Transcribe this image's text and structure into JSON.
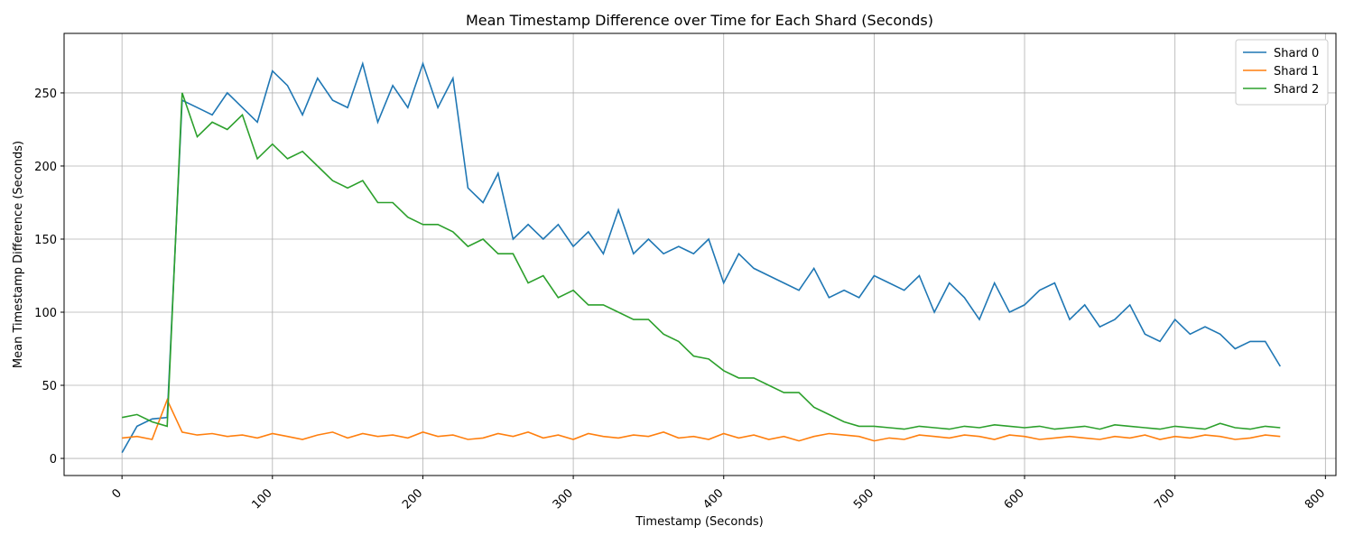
{
  "chart_data": {
    "type": "line",
    "title": "Mean Timestamp Difference over Time for Each Shard (Seconds)",
    "x_label": "Timestamp (Seconds)",
    "y_label": "Mean Timestamp Difference (Seconds)",
    "x": [
      0,
      10,
      20,
      30,
      40,
      50,
      60,
      70,
      80,
      90,
      100,
      110,
      120,
      130,
      140,
      150,
      160,
      170,
      180,
      190,
      200,
      210,
      220,
      230,
      240,
      250,
      260,
      270,
      280,
      290,
      300,
      310,
      320,
      330,
      340,
      350,
      360,
      370,
      380,
      390,
      400,
      410,
      420,
      430,
      440,
      450,
      460,
      470,
      480,
      490,
      500,
      510,
      520,
      530,
      540,
      550,
      560,
      570,
      580,
      590,
      600,
      610,
      620,
      630,
      640,
      650,
      660,
      670,
      680,
      690,
      700,
      710,
      720,
      730,
      740,
      750,
      760,
      770
    ],
    "series": [
      {
        "name": "Shard 0",
        "color": "#1f77b4",
        "values": [
          4,
          22,
          27,
          28,
          245,
          240,
          235,
          250,
          240,
          230,
          265,
          255,
          235,
          260,
          245,
          240,
          270,
          230,
          255,
          240,
          270,
          240,
          260,
          185,
          175,
          195,
          150,
          160,
          150,
          160,
          145,
          155,
          140,
          170,
          140,
          150,
          140,
          145,
          140,
          150,
          120,
          140,
          130,
          125,
          120,
          115,
          130,
          110,
          115,
          110,
          125,
          120,
          115,
          125,
          100,
          120,
          110,
          95,
          120,
          100,
          105,
          115,
          120,
          95,
          105,
          90,
          95,
          105,
          85,
          80,
          95,
          85,
          90,
          85,
          75,
          80,
          80,
          63
        ]
      },
      {
        "name": "Shard 1",
        "color": "#ff7f0e",
        "values": [
          14,
          15,
          13,
          40,
          18,
          16,
          17,
          15,
          16,
          14,
          17,
          15,
          13,
          16,
          18,
          14,
          17,
          15,
          16,
          14,
          18,
          15,
          16,
          13,
          14,
          17,
          15,
          18,
          14,
          16,
          13,
          17,
          15,
          14,
          16,
          15,
          18,
          14,
          15,
          13,
          17,
          14,
          16,
          13,
          15,
          12,
          15,
          17,
          16,
          15,
          12,
          14,
          13,
          16,
          15,
          14,
          16,
          15,
          13,
          16,
          15,
          13,
          14,
          15,
          14,
          13,
          15,
          14,
          16,
          13,
          15,
          14,
          16,
          15,
          13,
          14,
          16,
          15
        ]
      },
      {
        "name": "Shard 2",
        "color": "#2ca02c",
        "values": [
          28,
          30,
          25,
          22,
          250,
          220,
          230,
          225,
          235,
          205,
          215,
          205,
          210,
          200,
          190,
          185,
          190,
          175,
          175,
          165,
          160,
          160,
          155,
          145,
          150,
          140,
          140,
          120,
          125,
          110,
          115,
          105,
          105,
          100,
          95,
          95,
          85,
          80,
          70,
          68,
          60,
          55,
          55,
          50,
          45,
          45,
          35,
          30,
          25,
          22,
          22,
          21,
          20,
          22,
          21,
          20,
          22,
          21,
          23,
          22,
          21,
          22,
          20,
          21,
          22,
          20,
          23,
          22,
          21,
          20,
          22,
          21,
          20,
          24,
          21,
          20,
          22,
          21
        ]
      }
    ],
    "xlim": [
      -38.5,
      807
    ],
    "ylim": [
      -11.7,
      290.7
    ],
    "xticks": [
      0,
      100,
      200,
      300,
      400,
      500,
      600,
      700,
      800
    ],
    "yticks": [
      0,
      50,
      100,
      150,
      200,
      250
    ],
    "grid": true,
    "legend": "upper-right"
  }
}
